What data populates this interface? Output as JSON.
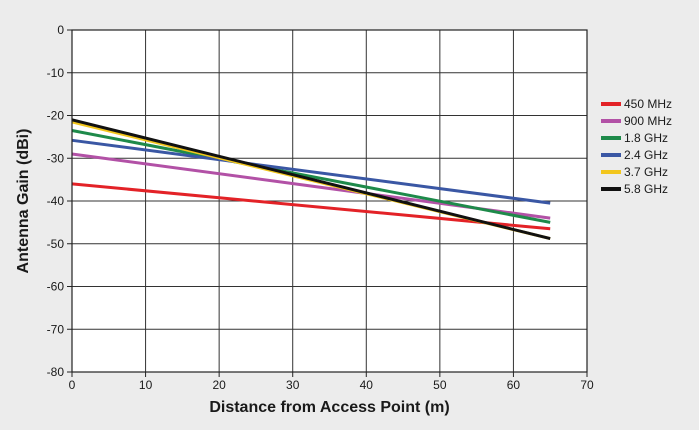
{
  "chart_data": {
    "type": "line",
    "title": "",
    "xlabel": "Distance from Access Point (m)",
    "ylabel": "Antenna Gain (dBi)",
    "xlim": [
      0,
      70
    ],
    "ylim": [
      -80,
      0
    ],
    "xticks": [
      "0",
      "10",
      "20",
      "30",
      "40",
      "50",
      "60",
      "70"
    ],
    "yticks": [
      "0",
      "-10",
      "-20",
      "-30",
      "-40",
      "-50",
      "-60",
      "-70",
      "-80"
    ],
    "grid": true,
    "legend_position": "right",
    "series": [
      {
        "name": "450 MHz",
        "color": "#e32227",
        "x": [
          0,
          65
        ],
        "y": [
          -36,
          -46.5
        ]
      },
      {
        "name": "900 MHz",
        "color": "#b251a6",
        "x": [
          0,
          65
        ],
        "y": [
          -29,
          -44
        ]
      },
      {
        "name": "1.8 GHz",
        "color": "#1e8a4a",
        "x": [
          0,
          65
        ],
        "y": [
          -23.5,
          -45
        ]
      },
      {
        "name": "2.4 GHz",
        "color": "#3a57a4",
        "x": [
          0,
          65
        ],
        "y": [
          -25.8,
          -40.5
        ]
      },
      {
        "name": "3.7 GHz",
        "color": "#f2c61d",
        "x": [
          0,
          65
        ],
        "y": [
          -21.5,
          -48.8
        ]
      },
      {
        "name": "5.8 GHz",
        "color": "#111111",
        "x": [
          0,
          65
        ],
        "y": [
          -21,
          -48.8
        ]
      }
    ]
  }
}
